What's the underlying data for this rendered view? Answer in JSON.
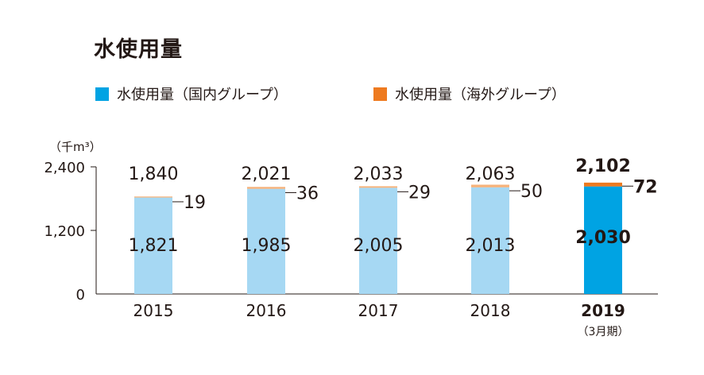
{
  "colors": {
    "domestic_light": "#a6d8f3",
    "domestic_highlight": "#00a3e3",
    "overseas_light": "#f6b27a",
    "overseas_highlight": "#ee7a1f",
    "text": "#231815",
    "axis": "#231815"
  },
  "chart_data": {
    "type": "bar",
    "stacked": true,
    "title": "水使用量",
    "unit_label": "（千m³）",
    "categories": [
      "2015",
      "2016",
      "2017",
      "2018",
      "2019"
    ],
    "category_note": "（3月期）",
    "highlight_index": 4,
    "series": [
      {
        "name": "水使用量（国内グループ）",
        "values": [
          1821,
          1985,
          2005,
          2013,
          2030
        ]
      },
      {
        "name": "水使用量（海外グループ）",
        "values": [
          19,
          36,
          29,
          50,
          72
        ]
      }
    ],
    "totals": [
      1840,
      2021,
      2033,
      2063,
      2102
    ],
    "value_labels": {
      "domestic": [
        "1,821",
        "1,985",
        "2,005",
        "2,013",
        "2,030"
      ],
      "overseas": [
        "19",
        "36",
        "29",
        "50",
        "72"
      ],
      "totals": [
        "1,840",
        "2,021",
        "2,033",
        "2,063",
        "2,102"
      ]
    },
    "yticks": [
      0,
      1200,
      2400
    ],
    "ytick_labels": [
      "0",
      "1,200",
      "2,400"
    ],
    "ylim": [
      0,
      2400
    ],
    "grid": false,
    "legend_position": "top"
  }
}
